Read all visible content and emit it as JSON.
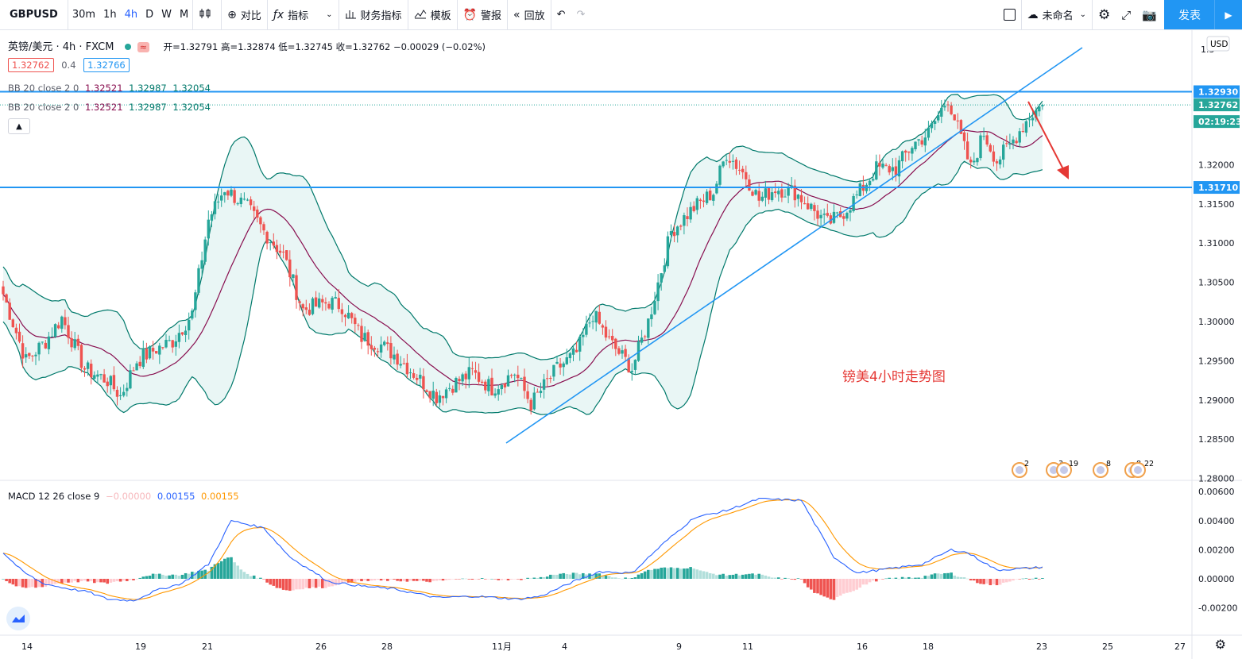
{
  "toolbar": {
    "symbol": "GBPUSD",
    "intervals": [
      "30m",
      "1h",
      "4h",
      "D",
      "W",
      "M"
    ],
    "active_interval": "4h",
    "compare": "对比",
    "indicators": "指标",
    "financials": "财务指标",
    "templates": "模板",
    "alert": "警报",
    "replay": "回放",
    "layout_name": "未命名",
    "publish": "发表"
  },
  "legend": {
    "title": "英镑/美元 · 4h · FXCM",
    "ohlc": "开=1.32791 高=1.32874 低=1.32745 收=1.32762 −0.00029 (−0.02%)",
    "bid": "1.32762",
    "spread": "0.4",
    "ask": "1.32766",
    "bb_label": "BB 20 close 2 0",
    "bb_basis": "1.32521",
    "bb_upper": "1.32987",
    "bb_lower": "1.32054",
    "macd_label": "MACD 12 26 close 9",
    "macd_hist": "−0.00000",
    "macd_line": "0.00155",
    "macd_signal": "0.00155"
  },
  "chart_data": {
    "type": "candlestick",
    "title": "镑美4小时走势图",
    "currency": "USD",
    "price_axis_ticks": [
      "1.32000",
      "1.31500",
      "1.31000",
      "1.30500",
      "1.30000",
      "1.29500",
      "1.29000",
      "1.28500",
      "1.28000"
    ],
    "price_axis_top_tick": "1.3",
    "price_labels": {
      "resistance": "1.32930",
      "last": "1.32762",
      "countdown": "02:19:23",
      "support": "1.31710"
    },
    "resistance_level": 1.3293,
    "support_level": 1.3171,
    "last_price": 1.32762,
    "macd_axis_ticks": [
      "0.00600",
      "0.00400",
      "0.00200",
      "0.00000",
      "-0.00200"
    ],
    "x_ticks": [
      "14",
      "19",
      "21",
      "26",
      "28",
      "11月",
      "4",
      "9",
      "11",
      "16",
      "18",
      "23",
      "25",
      "27"
    ],
    "events": [
      "2",
      "3",
      "19",
      "8",
      "8",
      "22"
    ],
    "price_anchors": [
      [
        0,
        1.3035
      ],
      [
        7,
        1.295
      ],
      [
        13,
        1.2975
      ],
      [
        18,
        1.3005
      ],
      [
        25,
        1.294
      ],
      [
        32,
        1.2925
      ],
      [
        36,
        1.2905
      ],
      [
        41,
        1.295
      ],
      [
        47,
        1.2965
      ],
      [
        52,
        1.2975
      ],
      [
        58,
        1.301
      ],
      [
        63,
        1.313
      ],
      [
        68,
        1.317
      ],
      [
        75,
        1.3145
      ],
      [
        80,
        1.3115
      ],
      [
        86,
        1.3085
      ],
      [
        92,
        1.3015
      ],
      [
        100,
        1.3025
      ],
      [
        104,
        1.302
      ],
      [
        110,
        1.298
      ],
      [
        116,
        1.297
      ],
      [
        121,
        1.2955
      ],
      [
        127,
        1.293
      ],
      [
        133,
        1.2905
      ],
      [
        138,
        1.292
      ],
      [
        144,
        1.2935
      ],
      [
        150,
        1.2915
      ],
      [
        157,
        1.2935
      ],
      [
        162,
        1.2895
      ],
      [
        170,
        1.294
      ],
      [
        176,
        1.296
      ],
      [
        181,
        1.301
      ],
      [
        186,
        1.2975
      ],
      [
        193,
        1.294
      ],
      [
        198,
        1.3
      ],
      [
        205,
        1.3115
      ],
      [
        212,
        1.3145
      ],
      [
        218,
        1.3165
      ],
      [
        222,
        1.3215
      ],
      [
        228,
        1.3185
      ],
      [
        232,
        1.3155
      ],
      [
        237,
        1.317
      ],
      [
        243,
        1.3165
      ],
      [
        248,
        1.3145
      ],
      [
        253,
        1.3125
      ],
      [
        257,
        1.3135
      ],
      [
        262,
        1.316
      ],
      [
        268,
        1.3195
      ],
      [
        274,
        1.3195
      ],
      [
        279,
        1.3225
      ],
      [
        284,
        1.324
      ],
      [
        290,
        1.3285
      ],
      [
        297,
        1.3195
      ],
      [
        301,
        1.324
      ],
      [
        305,
        1.3205
      ],
      [
        309,
        1.3225
      ],
      [
        315,
        1.3262
      ],
      [
        319,
        1.3276
      ]
    ],
    "macd_anchors": [
      [
        0,
        0.0018
      ],
      [
        6,
        0.0005
      ],
      [
        12,
        -0.0003
      ],
      [
        18,
        -0.0006
      ],
      [
        26,
        -0.0009
      ],
      [
        32,
        -0.0014
      ],
      [
        40,
        -0.0015
      ],
      [
        47,
        -0.0008
      ],
      [
        55,
        -0.0003
      ],
      [
        63,
        0.001
      ],
      [
        70,
        0.004
      ],
      [
        80,
        0.0035
      ],
      [
        88,
        0.0015
      ],
      [
        100,
        -0.0002
      ],
      [
        110,
        -0.0005
      ],
      [
        120,
        -0.0007
      ],
      [
        133,
        -0.0013
      ],
      [
        145,
        -0.0012
      ],
      [
        158,
        -0.0014
      ],
      [
        165,
        -0.0012
      ],
      [
        175,
        -0.0002
      ],
      [
        183,
        0.0005
      ],
      [
        193,
        0.0004
      ],
      [
        203,
        0.0025
      ],
      [
        212,
        0.0042
      ],
      [
        222,
        0.0047
      ],
      [
        232,
        0.0055
      ],
      [
        245,
        0.0054
      ],
      [
        255,
        0.0015
      ],
      [
        262,
        0.0004
      ],
      [
        272,
        0.0007
      ],
      [
        282,
        0.001
      ],
      [
        291,
        0.002
      ],
      [
        296,
        0.0018
      ],
      [
        305,
        0.0006
      ],
      [
        319,
        0.0008
      ]
    ],
    "trendline": [
      [
        1.2845,
        72
      ],
      [
        1.325,
        340
      ]
    ]
  }
}
